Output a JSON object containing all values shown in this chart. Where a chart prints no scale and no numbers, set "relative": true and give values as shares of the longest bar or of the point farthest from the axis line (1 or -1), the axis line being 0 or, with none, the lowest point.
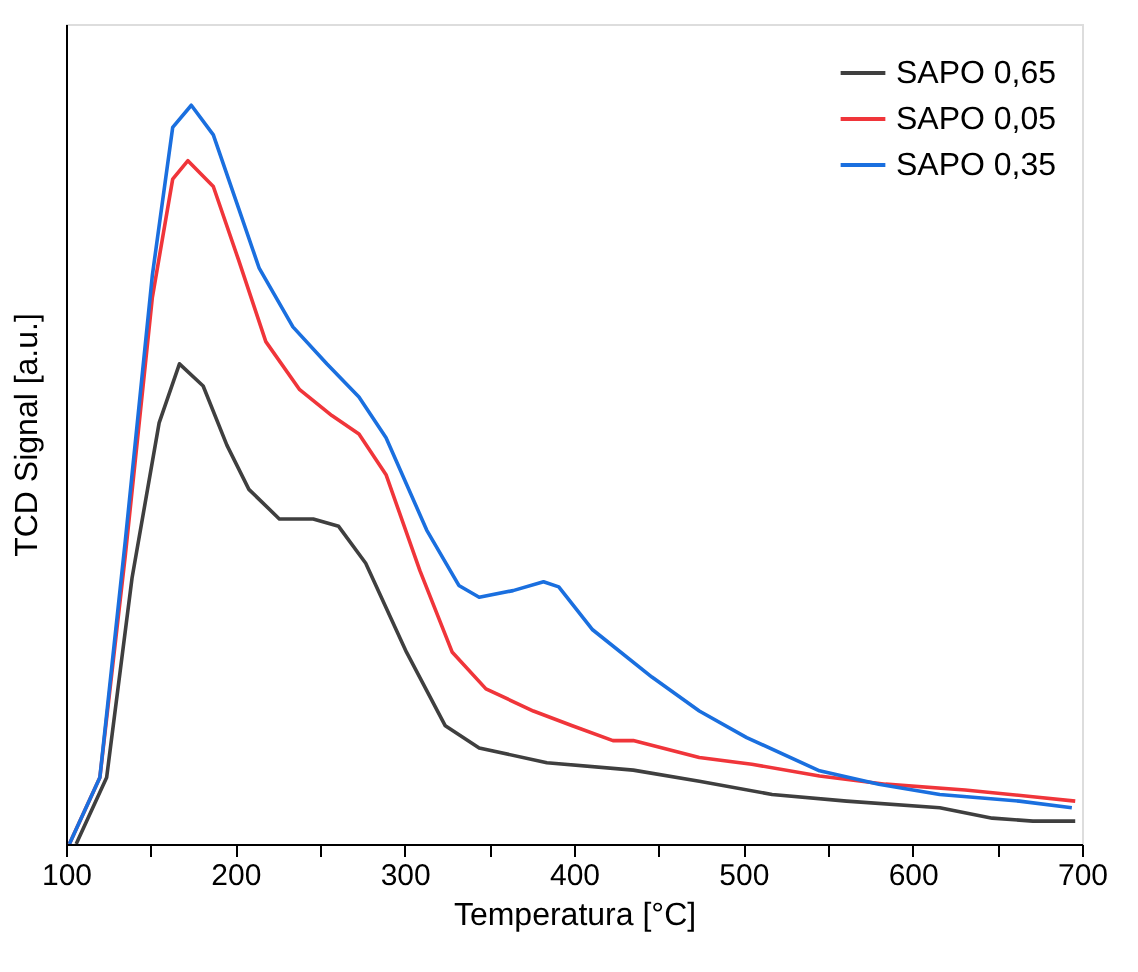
{
  "chart_data": {
    "type": "line",
    "xlabel": "Temperatura [°C]",
    "ylabel": "TCD Signal [a.u.]",
    "relative": true,
    "xlim": [
      100,
      700
    ],
    "xticks": [
      100,
      {
        "value": 150,
        "label": null
      },
      200,
      {
        "value": 250,
        "label": null
      },
      300,
      {
        "value": 350,
        "label": null
      },
      400,
      {
        "value": 450,
        "label": null
      },
      500,
      {
        "value": 550,
        "label": null
      },
      600,
      {
        "value": 650,
        "label": null
      },
      700
    ],
    "tick_labels": "x",
    "legend": "top right",
    "grid": false,
    "marker": "none",
    "line_style": "solid",
    "series": [
      {
        "name": "SAPO 0,65",
        "color": "#3f3f3f",
        "x": [
          106,
          124,
          139,
          155,
          167,
          181,
          195,
          208,
          226,
          246,
          261,
          277,
          301,
          324,
          344,
          384,
          435,
          474,
          517,
          561,
          616,
          647,
          671,
          696
        ],
        "values": [
          0,
          0.09,
          0.36,
          0.57,
          0.65,
          0.62,
          0.54,
          0.48,
          0.44,
          0.44,
          0.43,
          0.38,
          0.26,
          0.16,
          0.13,
          0.11,
          0.1,
          0.085,
          0.067,
          0.058,
          0.049,
          0.035,
          0.031,
          0.031
        ]
      },
      {
        "name": "SAPO 0,05",
        "color": "#f0353a",
        "x": [
          102,
          120,
          135,
          151,
          163,
          172,
          187,
          202,
          218,
          238,
          257,
          273,
          289,
          309,
          328,
          348,
          376,
          399,
          423,
          435,
          474,
          505,
          545,
          584,
          631,
          671,
          696
        ],
        "values": [
          0,
          0.09,
          0.39,
          0.74,
          0.9,
          0.925,
          0.89,
          0.79,
          0.68,
          0.615,
          0.58,
          0.555,
          0.5,
          0.37,
          0.26,
          0.21,
          0.18,
          0.16,
          0.14,
          0.14,
          0.117,
          0.108,
          0.092,
          0.081,
          0.073,
          0.064,
          0.058
        ]
      },
      {
        "name": "SAPO 0,35",
        "color": "#1a6fdf",
        "x": [
          102,
          120,
          135,
          151,
          163,
          174,
          187,
          202,
          214,
          234,
          254,
          273,
          289,
          313,
          332,
          344,
          364,
          382,
          391,
          411,
          446,
          474,
          502,
          545,
          580,
          616,
          663,
          694
        ],
        "values": [
          0,
          0.09,
          0.41,
          0.77,
          0.97,
          1.0,
          0.96,
          0.86,
          0.78,
          0.7,
          0.65,
          0.605,
          0.55,
          0.425,
          0.35,
          0.334,
          0.343,
          0.355,
          0.348,
          0.29,
          0.226,
          0.18,
          0.144,
          0.099,
          0.081,
          0.067,
          0.058,
          0.049
        ]
      }
    ]
  }
}
